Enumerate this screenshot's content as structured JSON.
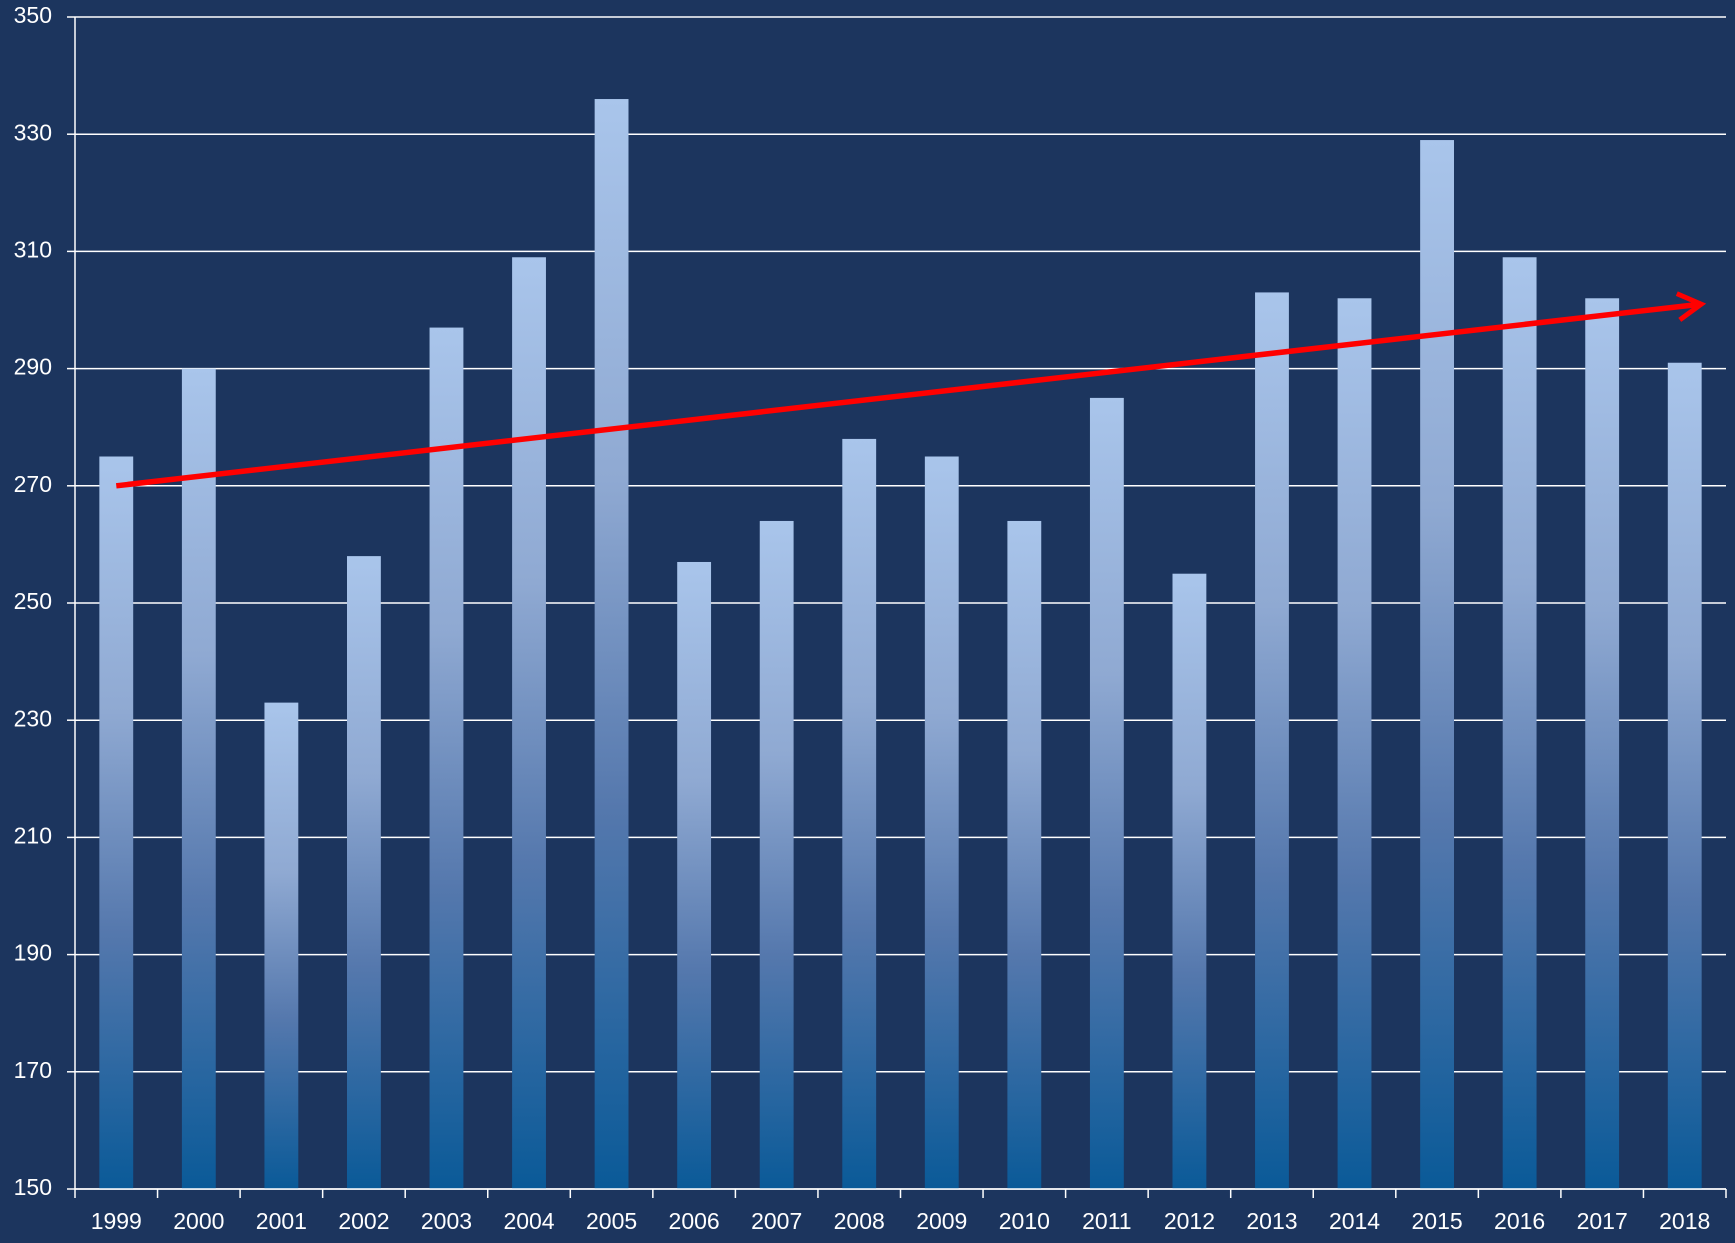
{
  "chart_data": {
    "type": "bar",
    "categories": [
      "1999",
      "2000",
      "2001",
      "2002",
      "2003",
      "2004",
      "2005",
      "2006",
      "2007",
      "2008",
      "2009",
      "2010",
      "2011",
      "2012",
      "2013",
      "2014",
      "2015",
      "2016",
      "2017",
      "2018"
    ],
    "values": [
      275,
      290,
      233,
      258,
      297,
      309,
      336,
      257,
      264,
      278,
      275,
      264,
      285,
      255,
      303,
      302,
      329,
      309,
      302,
      291
    ],
    "color": "#a6c2ea",
    "ylim": [
      150,
      350
    ],
    "yticks": [
      150,
      170,
      190,
      210,
      230,
      250,
      270,
      290,
      310,
      330,
      350
    ],
    "grid": true,
    "trendline": {
      "color": "#ff0000",
      "values": [
        270,
        301
      ]
    }
  }
}
